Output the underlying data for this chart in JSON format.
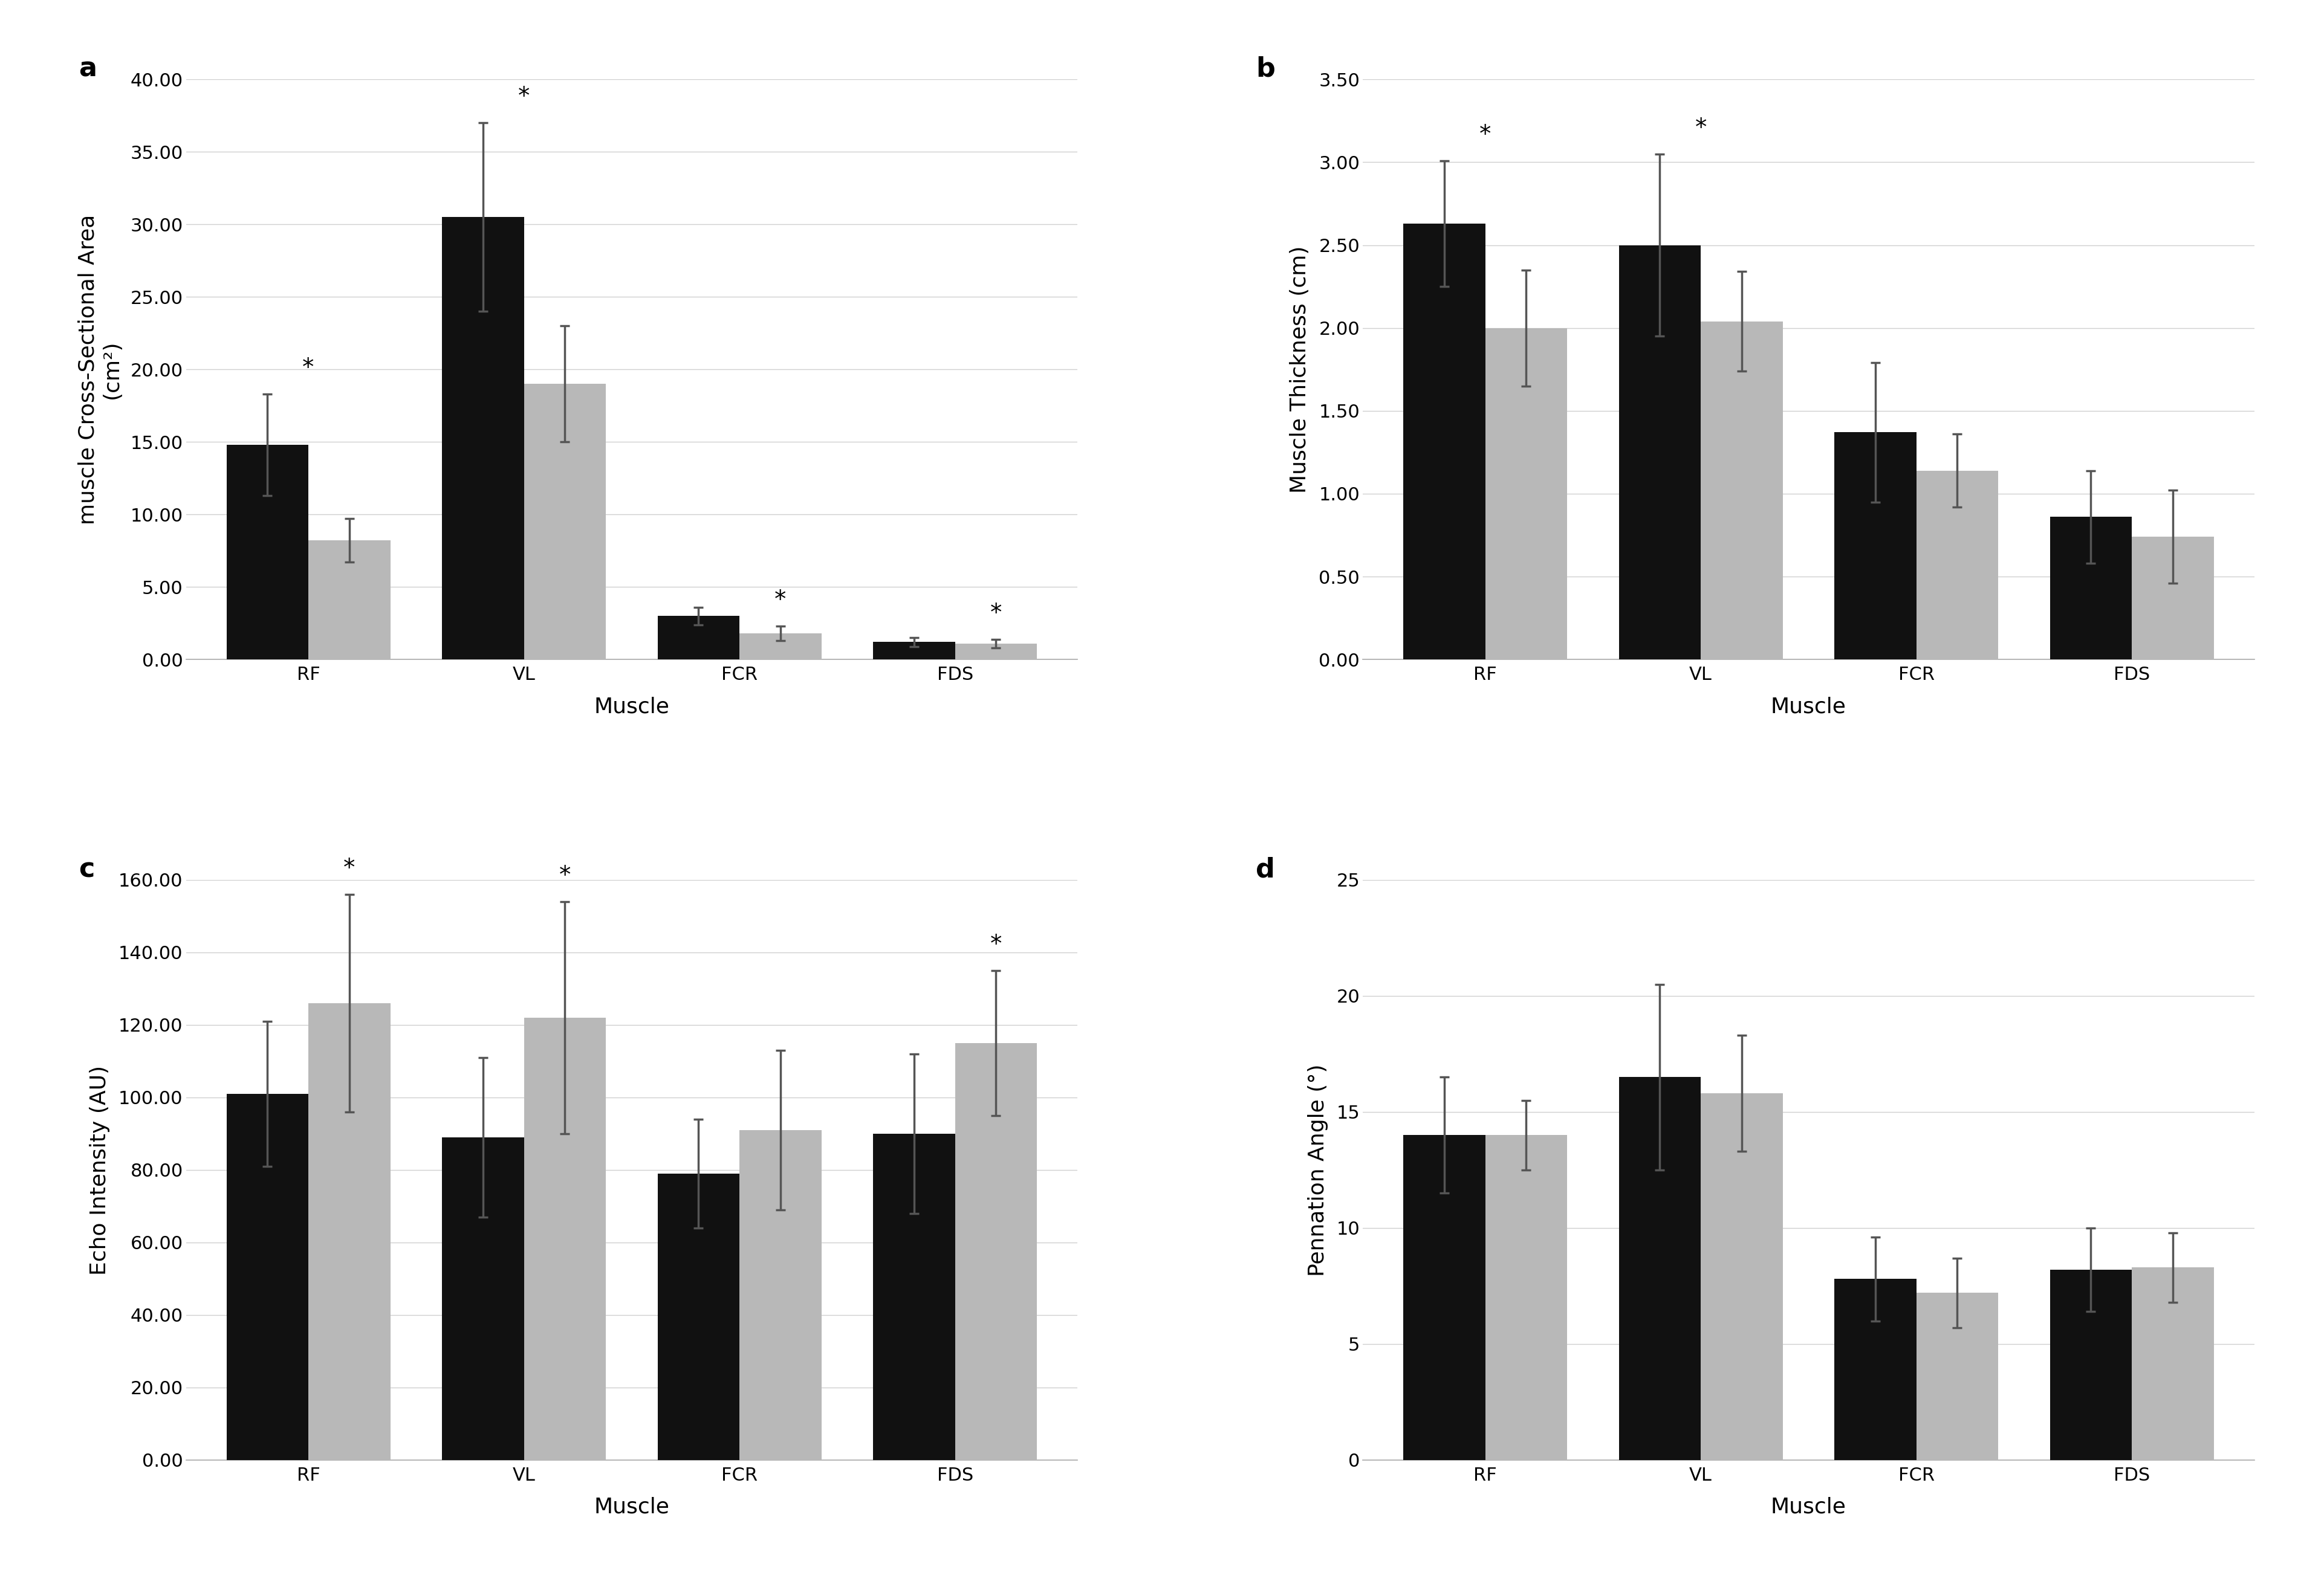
{
  "panels": {
    "a": {
      "title": "a",
      "ylabel": "muscle Cross-Sectional Area\n(cm²)",
      "xlabel": "Muscle",
      "ylim": [
        0,
        40
      ],
      "yticks": [
        0.0,
        5.0,
        10.0,
        15.0,
        20.0,
        25.0,
        30.0,
        35.0,
        40.0
      ],
      "ytick_labels": [
        "0.00",
        "5.00",
        "10.00",
        "15.00",
        "20.00",
        "25.00",
        "30.00",
        "35.00",
        "40.00"
      ],
      "categories": [
        "RF",
        "VL",
        "FCR",
        "FDS"
      ],
      "black_vals": [
        14.8,
        30.5,
        3.0,
        1.2
      ],
      "gray_vals": [
        8.2,
        19.0,
        1.8,
        1.1
      ],
      "black_err": [
        3.5,
        6.5,
        0.6,
        0.3
      ],
      "gray_err": [
        1.5,
        4.0,
        0.5,
        0.3
      ],
      "sig": [
        true,
        true,
        true,
        true
      ],
      "sig_above_gray": [
        false,
        false,
        true,
        true
      ]
    },
    "b": {
      "title": "b",
      "ylabel": "Muscle Thickness (cm)",
      "xlabel": "Muscle",
      "ylim": [
        0,
        3.5
      ],
      "yticks": [
        0.0,
        0.5,
        1.0,
        1.5,
        2.0,
        2.5,
        3.0,
        3.5
      ],
      "ytick_labels": [
        "0.00",
        "0.50",
        "1.00",
        "1.50",
        "2.00",
        "2.50",
        "3.00",
        "3.50"
      ],
      "categories": [
        "RF",
        "VL",
        "FCR",
        "FDS"
      ],
      "black_vals": [
        2.63,
        2.5,
        1.37,
        0.86
      ],
      "gray_vals": [
        2.0,
        2.04,
        1.14,
        0.74
      ],
      "black_err": [
        0.38,
        0.55,
        0.42,
        0.28
      ],
      "gray_err": [
        0.35,
        0.3,
        0.22,
        0.28
      ],
      "sig": [
        true,
        true,
        false,
        false
      ],
      "sig_above_gray": [
        false,
        false,
        false,
        false
      ]
    },
    "c": {
      "title": "c",
      "ylabel": "Echo Intensity (AU)",
      "xlabel": "Muscle",
      "ylim": [
        0,
        160
      ],
      "yticks": [
        0.0,
        20.0,
        40.0,
        60.0,
        80.0,
        100.0,
        120.0,
        140.0,
        160.0
      ],
      "ytick_labels": [
        "0.00",
        "20.00",
        "40.00",
        "60.00",
        "80.00",
        "100.00",
        "120.00",
        "140.00",
        "160.00"
      ],
      "categories": [
        "RF",
        "VL",
        "FCR",
        "FDS"
      ],
      "black_vals": [
        101.0,
        89.0,
        79.0,
        90.0
      ],
      "gray_vals": [
        126.0,
        122.0,
        91.0,
        115.0
      ],
      "black_err": [
        20.0,
        22.0,
        15.0,
        22.0
      ],
      "gray_err": [
        30.0,
        32.0,
        22.0,
        20.0
      ],
      "sig": [
        true,
        true,
        false,
        true
      ],
      "sig_above_gray": [
        true,
        true,
        false,
        true
      ]
    },
    "d": {
      "title": "d",
      "ylabel": "Pennation Angle (°)",
      "xlabel": "Muscle",
      "ylim": [
        0,
        25
      ],
      "yticks": [
        0,
        5,
        10,
        15,
        20,
        25
      ],
      "ytick_labels": [
        "0",
        "5",
        "10",
        "15",
        "20",
        "25"
      ],
      "categories": [
        "RF",
        "VL",
        "FCR",
        "FDS"
      ],
      "black_vals": [
        14.0,
        16.5,
        7.8,
        8.2
      ],
      "gray_vals": [
        14.0,
        15.8,
        7.2,
        8.3
      ],
      "black_err": [
        2.5,
        4.0,
        1.8,
        1.8
      ],
      "gray_err": [
        1.5,
        2.5,
        1.5,
        1.5
      ],
      "sig": [
        false,
        false,
        false,
        false
      ],
      "sig_above_gray": [
        false,
        false,
        false,
        false
      ]
    }
  },
  "black_color": "#111111",
  "gray_color": "#b8b8b8",
  "bar_width": 0.38,
  "background_color": "#ffffff",
  "grid_color": "#d0d0d0",
  "error_color": "#555555",
  "sig_marker": "*",
  "sig_fontsize": 28,
  "axis_label_fontsize": 26,
  "tick_fontsize": 22,
  "panel_label_fontsize": 32,
  "xlabel_fontsize": 26
}
